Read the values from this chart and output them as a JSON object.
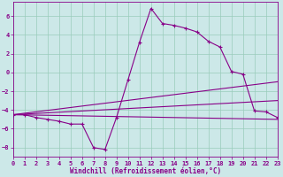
{
  "bg_color": "#cce8e8",
  "line_color": "#880088",
  "grid_color": "#99ccbb",
  "xlabel": "Windchill (Refroidissement éolien,°C)",
  "xlim": [
    0,
    23
  ],
  "ylim": [
    -9,
    7.5
  ],
  "xticks": [
    0,
    1,
    2,
    3,
    4,
    5,
    6,
    7,
    8,
    9,
    10,
    11,
    12,
    13,
    14,
    15,
    16,
    17,
    18,
    19,
    20,
    21,
    22,
    23
  ],
  "yticks": [
    -8,
    -6,
    -4,
    -2,
    0,
    2,
    4,
    6
  ],
  "main_x": [
    0,
    1,
    2,
    3,
    4,
    5,
    6,
    7,
    8,
    9,
    10,
    11,
    12,
    13,
    14,
    15,
    16,
    17,
    18,
    19,
    20,
    21,
    22,
    23
  ],
  "main_y": [
    -4.5,
    -4.5,
    -4.8,
    -5.0,
    -5.2,
    -5.5,
    -5.5,
    -8.0,
    -8.2,
    -4.8,
    -0.8,
    3.2,
    6.8,
    5.2,
    5.0,
    4.7,
    4.3,
    3.3,
    2.7,
    0.1,
    -0.2,
    -4.1,
    -4.2,
    -4.8
  ],
  "straight_lines": [
    {
      "x0": 0,
      "y0": -4.5,
      "x1": 23,
      "y1": -5.0
    },
    {
      "x0": 0,
      "y0": -4.5,
      "x1": 23,
      "y1": -3.0
    },
    {
      "x0": 0,
      "y0": -4.5,
      "x1": 23,
      "y1": -1.0
    }
  ],
  "tick_fontsize": 5.0,
  "xlabel_fontsize": 5.5
}
